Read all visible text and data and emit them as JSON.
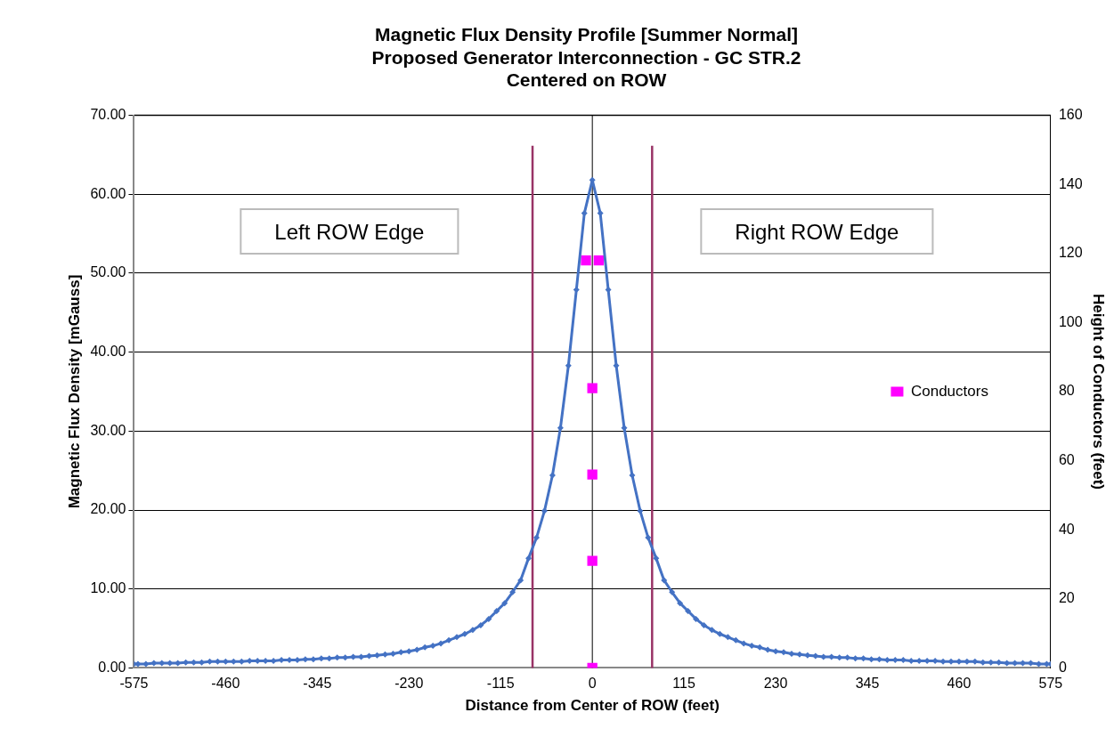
{
  "chart_data": {
    "type": "line",
    "title": [
      "Magnetic Flux Density Profile [Summer Normal]",
      "Proposed Generator Interconnection - GC STR.2",
      "Centered on ROW"
    ],
    "xlabel": "Distance from Center of ROW (feet)",
    "ylabel": "Magnetic Flux Density [mGauss]",
    "y2label": "Height of Conductors (feet)",
    "x": [
      -575,
      -570,
      -560,
      -550,
      -540,
      -530,
      -520,
      -510,
      -500,
      -490,
      -480,
      -470,
      -460,
      -450,
      -440,
      -430,
      -420,
      -410,
      -400,
      -390,
      -380,
      -370,
      -360,
      -350,
      -340,
      -330,
      -320,
      -310,
      -300,
      -290,
      -280,
      -270,
      -260,
      -250,
      -240,
      -230,
      -220,
      -210,
      -200,
      -190,
      -180,
      -170,
      -160,
      -150,
      -140,
      -130,
      -120,
      -110,
      -100,
      -90,
      -80,
      -70,
      -60,
      -50,
      -40,
      -30,
      -20,
      -10,
      0,
      10,
      20,
      30,
      40,
      50,
      60,
      70,
      80,
      90,
      100,
      110,
      120,
      130,
      140,
      150,
      160,
      170,
      180,
      190,
      200,
      210,
      220,
      230,
      240,
      250,
      260,
      270,
      280,
      290,
      300,
      310,
      320,
      330,
      340,
      350,
      360,
      370,
      380,
      390,
      400,
      410,
      420,
      430,
      440,
      450,
      460,
      470,
      480,
      490,
      500,
      510,
      520,
      530,
      540,
      550,
      560,
      570,
      575
    ],
    "series": [
      {
        "color": "#4472c4",
        "marker": "diamond",
        "values": [
          0.5,
          0.5,
          0.5,
          0.6,
          0.6,
          0.6,
          0.6,
          0.7,
          0.7,
          0.7,
          0.8,
          0.8,
          0.8,
          0.8,
          0.8,
          0.9,
          0.9,
          0.9,
          0.9,
          1.0,
          1.0,
          1.0,
          1.1,
          1.1,
          1.2,
          1.2,
          1.3,
          1.3,
          1.4,
          1.4,
          1.5,
          1.6,
          1.7,
          1.8,
          2.0,
          2.1,
          2.3,
          2.6,
          2.8,
          3.1,
          3.5,
          3.9,
          4.3,
          4.8,
          5.4,
          6.2,
          7.2,
          8.2,
          9.6,
          11.1,
          13.9,
          16.5,
          19.9,
          24.4,
          30.4,
          38.3,
          47.9,
          57.6,
          61.8,
          57.6,
          47.9,
          38.3,
          30.4,
          24.4,
          19.9,
          16.5,
          13.9,
          11.1,
          9.6,
          8.2,
          7.2,
          6.2,
          5.4,
          4.8,
          4.3,
          3.9,
          3.5,
          3.1,
          2.8,
          2.6,
          2.3,
          2.1,
          2.0,
          1.8,
          1.7,
          1.6,
          1.5,
          1.4,
          1.4,
          1.3,
          1.3,
          1.2,
          1.2,
          1.1,
          1.1,
          1.0,
          1.0,
          1.0,
          0.9,
          0.9,
          0.9,
          0.9,
          0.8,
          0.8,
          0.8,
          0.8,
          0.8,
          0.7,
          0.7,
          0.7,
          0.6,
          0.6,
          0.6,
          0.6,
          0.5,
          0.5,
          0.5
        ]
      },
      {
        "type": "scatter",
        "name": "Conductors",
        "color": "#ff00ff",
        "marker": "square",
        "axis": "y2",
        "x": [
          -8,
          8,
          0,
          0,
          0,
          0
        ],
        "values": [
          118,
          118,
          81,
          56,
          31,
          0
        ]
      }
    ],
    "xlim": [
      -575,
      575
    ],
    "xticks": [
      -575,
      -460,
      -345,
      -230,
      -115,
      0,
      115,
      230,
      345,
      460,
      575
    ],
    "ylim": [
      0,
      70
    ],
    "yticks": [
      {
        "value": 0,
        "label": "0.00"
      },
      {
        "value": 10,
        "label": "10.00"
      },
      {
        "value": 20,
        "label": "20.00"
      },
      {
        "value": 30,
        "label": "30.00"
      },
      {
        "value": 40,
        "label": "40.00"
      },
      {
        "value": 50,
        "label": "50.00"
      },
      {
        "value": 60,
        "label": "60.00"
      },
      {
        "value": 70,
        "label": "70.00"
      }
    ],
    "y2lim": [
      0,
      160
    ],
    "y2ticks": [
      0,
      20,
      40,
      60,
      80,
      100,
      120,
      140,
      160
    ],
    "grid": "y",
    "legend": "right",
    "ref_lines": [
      {
        "axis": "x",
        "value": -75,
        "color": "#993366"
      },
      {
        "axis": "x",
        "value": 75,
        "color": "#993366"
      },
      {
        "axis": "x",
        "value": 0,
        "color": "#000000"
      }
    ],
    "annotations": [
      "Left ROW Edge",
      "Right ROW Edge"
    ]
  }
}
